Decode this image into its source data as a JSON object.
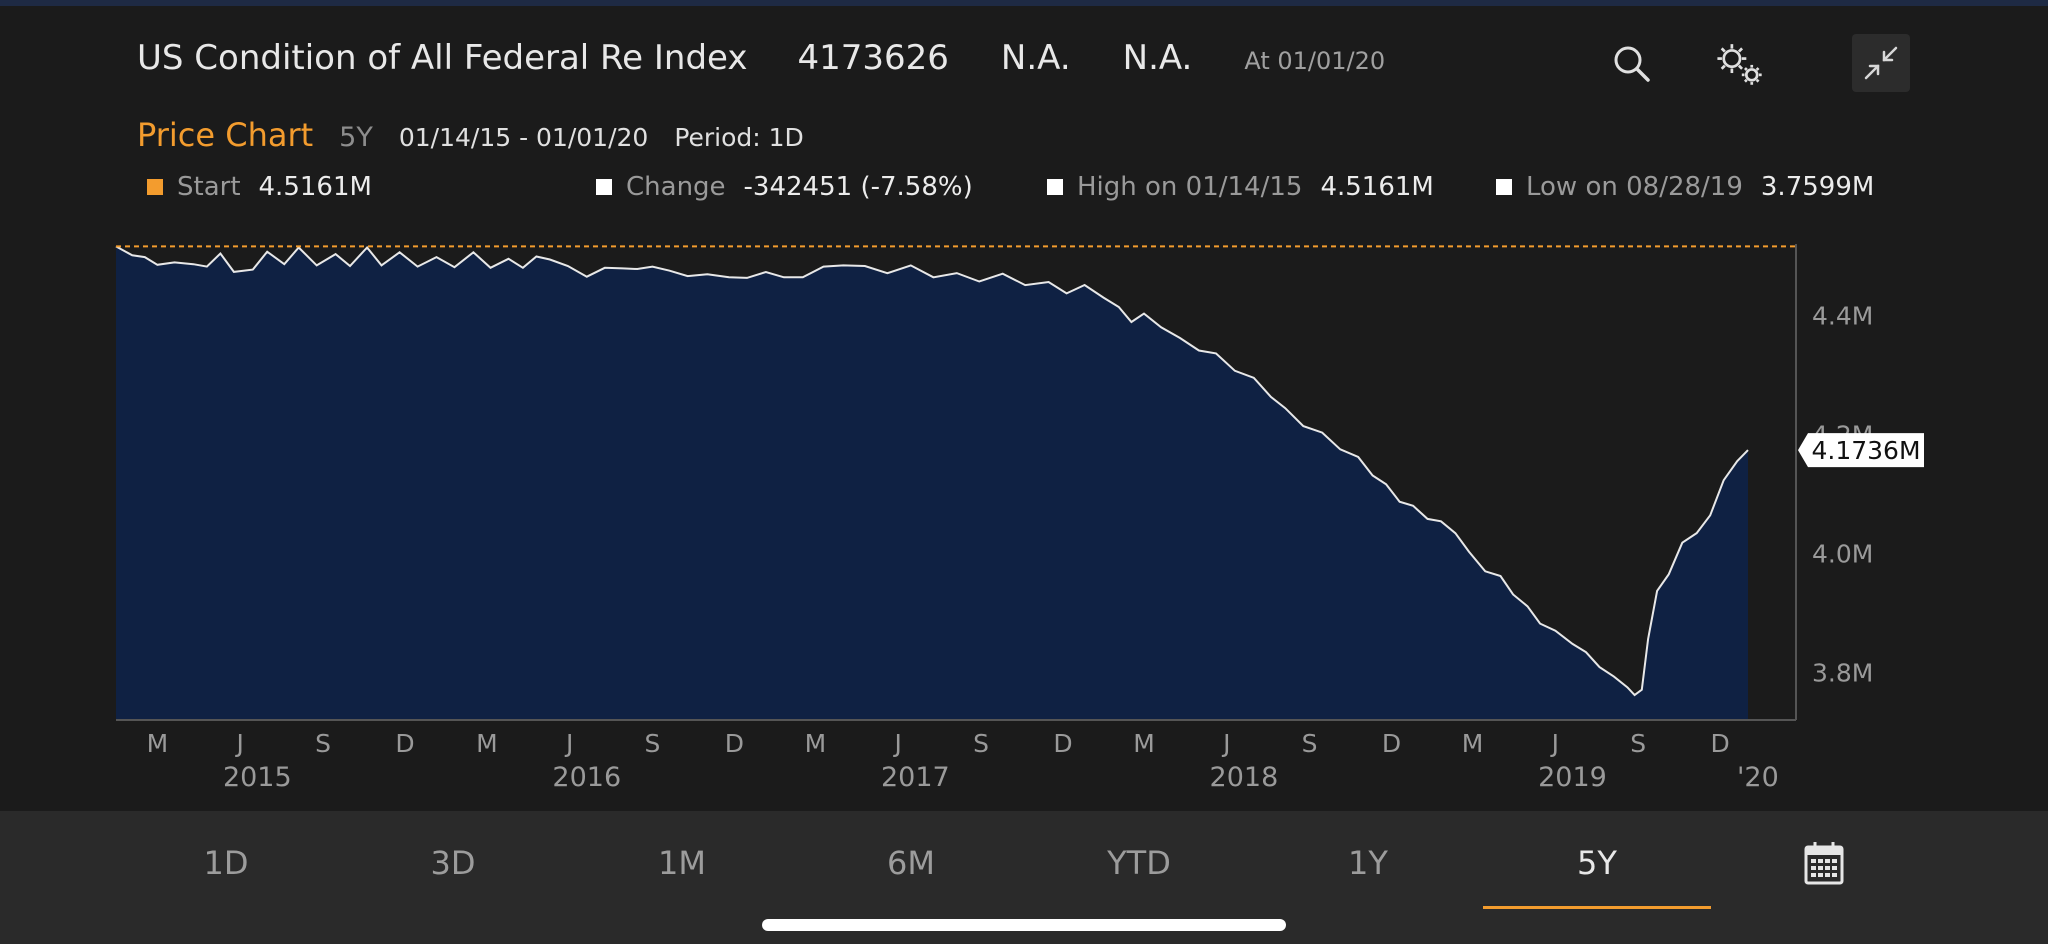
{
  "header": {
    "title": "US Condition of All Federal Re Index",
    "last_value": "4173626",
    "change_value": "N.A.",
    "change_pct": "N.A.",
    "as_of": "At 01/01/20"
  },
  "icons": {
    "search": "search-icon",
    "settings": "gear-icon",
    "collapse": "collapse-icon",
    "calendar": "calendar-icon"
  },
  "subheader": {
    "title": "Price Chart",
    "range": "5Y",
    "date_range": "01/14/15 - 01/01/20",
    "period": "Period: 1D"
  },
  "stats": {
    "start": {
      "label": "Start",
      "value": "4.5161M"
    },
    "change": {
      "label": "Change",
      "value": "-342451 (-7.58%)"
    },
    "high": {
      "label": "High on 01/14/15",
      "value": "4.5161M"
    },
    "low": {
      "label": "Low on 08/28/19",
      "value": "3.7599M"
    }
  },
  "colors": {
    "accent": "#f39c2e",
    "area_fill": "#0f2143",
    "line": "#e8e8e8",
    "background": "#1b1b1b"
  },
  "chart_data": {
    "type": "area",
    "x_start": "2015-01-14",
    "x_end": "2020-01-01",
    "ylim": [
      3.72,
      4.52
    ],
    "y_unit": "M",
    "y_ticks": [
      {
        "value": 4.4,
        "label": "4.4M"
      },
      {
        "value": 4.2,
        "label": "4.2M"
      },
      {
        "value": 4.0,
        "label": "4.0M"
      },
      {
        "value": 3.8,
        "label": "3.8M"
      }
    ],
    "month_ticks": [
      {
        "date": "2015-03-01",
        "label": "M"
      },
      {
        "date": "2015-06-01",
        "label": "J"
      },
      {
        "date": "2015-09-01",
        "label": "S"
      },
      {
        "date": "2015-12-01",
        "label": "D"
      },
      {
        "date": "2016-03-01",
        "label": "M"
      },
      {
        "date": "2016-06-01",
        "label": "J"
      },
      {
        "date": "2016-09-01",
        "label": "S"
      },
      {
        "date": "2016-12-01",
        "label": "D"
      },
      {
        "date": "2017-03-01",
        "label": "M"
      },
      {
        "date": "2017-06-01",
        "label": "J"
      },
      {
        "date": "2017-09-01",
        "label": "S"
      },
      {
        "date": "2017-12-01",
        "label": "D"
      },
      {
        "date": "2018-03-01",
        "label": "M"
      },
      {
        "date": "2018-06-01",
        "label": "J"
      },
      {
        "date": "2018-09-01",
        "label": "S"
      },
      {
        "date": "2018-12-01",
        "label": "D"
      },
      {
        "date": "2019-03-01",
        "label": "M"
      },
      {
        "date": "2019-06-01",
        "label": "J"
      },
      {
        "date": "2019-09-01",
        "label": "S"
      },
      {
        "date": "2019-12-01",
        "label": "D"
      }
    ],
    "year_ticks": [
      {
        "date": "2015-06-20",
        "label": "2015"
      },
      {
        "date": "2016-06-20",
        "label": "2016"
      },
      {
        "date": "2017-06-20",
        "label": "2017"
      },
      {
        "date": "2018-06-20",
        "label": "2018"
      },
      {
        "date": "2019-06-20",
        "label": "2019"
      },
      {
        "date": "2020-01-12",
        "label": "'20"
      }
    ],
    "reference_line": {
      "value": 4.5161
    },
    "last_point": {
      "value": 4.1736,
      "label": "4.1736M"
    },
    "series": [
      {
        "values": [
          [
            "2015-01-14",
            4.516
          ],
          [
            "2015-02-01",
            4.505
          ],
          [
            "2015-02-15",
            4.492
          ],
          [
            "2015-03-01",
            4.488
          ],
          [
            "2015-03-20",
            4.484
          ],
          [
            "2015-04-10",
            4.488
          ],
          [
            "2015-04-25",
            4.478
          ],
          [
            "2015-05-10",
            4.51
          ],
          [
            "2015-05-25",
            4.47
          ],
          [
            "2015-06-15",
            4.482
          ],
          [
            "2015-07-01",
            4.505
          ],
          [
            "2015-07-20",
            4.49
          ],
          [
            "2015-08-05",
            4.508
          ],
          [
            "2015-08-25",
            4.487
          ],
          [
            "2015-09-15",
            4.498
          ],
          [
            "2015-10-01",
            4.485
          ],
          [
            "2015-10-20",
            4.51
          ],
          [
            "2015-11-05",
            4.49
          ],
          [
            "2015-11-25",
            4.503
          ],
          [
            "2015-12-15",
            4.487
          ],
          [
            "2016-01-05",
            4.496
          ],
          [
            "2016-01-25",
            4.485
          ],
          [
            "2016-02-15",
            4.5
          ],
          [
            "2016-03-05",
            4.483
          ],
          [
            "2016-03-25",
            4.49
          ],
          [
            "2016-04-10",
            4.482
          ],
          [
            "2016-04-25",
            4.495
          ],
          [
            "2016-05-10",
            4.5
          ],
          [
            "2016-05-30",
            4.48
          ],
          [
            "2016-06-20",
            4.47
          ],
          [
            "2016-07-10",
            4.478
          ],
          [
            "2016-07-30",
            4.483
          ],
          [
            "2016-08-15",
            4.472
          ],
          [
            "2016-09-01",
            4.485
          ],
          [
            "2016-09-20",
            4.47
          ],
          [
            "2016-10-10",
            4.468
          ],
          [
            "2016-11-01",
            4.465
          ],
          [
            "2016-11-25",
            4.47
          ],
          [
            "2016-12-15",
            4.46
          ],
          [
            "2017-01-05",
            4.478
          ],
          [
            "2017-01-25",
            4.462
          ],
          [
            "2017-02-15",
            4.468
          ],
          [
            "2017-03-10",
            4.476
          ],
          [
            "2017-04-01",
            4.487
          ],
          [
            "2017-04-25",
            4.478
          ],
          [
            "2017-05-20",
            4.473
          ],
          [
            "2017-06-15",
            4.48
          ],
          [
            "2017-07-10",
            4.47
          ],
          [
            "2017-08-05",
            4.468
          ],
          [
            "2017-08-30",
            4.462
          ],
          [
            "2017-09-25",
            4.468
          ],
          [
            "2017-10-20",
            4.455
          ],
          [
            "2017-11-15",
            4.45
          ],
          [
            "2017-12-05",
            4.44
          ],
          [
            "2017-12-25",
            4.446
          ],
          [
            "2018-01-15",
            4.432
          ],
          [
            "2018-02-01",
            4.41
          ],
          [
            "2018-02-15",
            4.395
          ],
          [
            "2018-03-01",
            4.4
          ],
          [
            "2018-03-20",
            4.385
          ],
          [
            "2018-04-10",
            4.36
          ],
          [
            "2018-05-01",
            4.345
          ],
          [
            "2018-05-20",
            4.33
          ],
          [
            "2018-06-10",
            4.31
          ],
          [
            "2018-07-01",
            4.29
          ],
          [
            "2018-07-20",
            4.265
          ],
          [
            "2018-08-05",
            4.24
          ],
          [
            "2018-08-25",
            4.22
          ],
          [
            "2018-09-15",
            4.2
          ],
          [
            "2018-10-05",
            4.18
          ],
          [
            "2018-10-25",
            4.16
          ],
          [
            "2018-11-10",
            4.135
          ],
          [
            "2018-11-25",
            4.11
          ],
          [
            "2018-12-10",
            4.09
          ],
          [
            "2018-12-25",
            4.075
          ],
          [
            "2019-01-10",
            4.06
          ],
          [
            "2019-01-25",
            4.05
          ],
          [
            "2019-02-10",
            4.04
          ],
          [
            "2019-02-25",
            4.0
          ],
          [
            "2019-03-15",
            3.975
          ],
          [
            "2019-04-01",
            3.96
          ],
          [
            "2019-04-15",
            3.935
          ],
          [
            "2019-05-01",
            3.905
          ],
          [
            "2019-05-15",
            3.885
          ],
          [
            "2019-06-01",
            3.865
          ],
          [
            "2019-06-20",
            3.85
          ],
          [
            "2019-07-05",
            3.83
          ],
          [
            "2019-07-20",
            3.815
          ],
          [
            "2019-08-05",
            3.79
          ],
          [
            "2019-08-20",
            3.78
          ],
          [
            "2019-08-28",
            3.76
          ],
          [
            "2019-09-05",
            3.775
          ],
          [
            "2019-09-12",
            3.85
          ],
          [
            "2019-09-22",
            3.94
          ],
          [
            "2019-10-05",
            3.96
          ],
          [
            "2019-10-20",
            4.02
          ],
          [
            "2019-11-05",
            4.03
          ],
          [
            "2019-11-20",
            4.07
          ],
          [
            "2019-12-05",
            4.12
          ],
          [
            "2019-12-20",
            4.16
          ],
          [
            "2020-01-01",
            4.1736
          ]
        ]
      }
    ]
  },
  "tabs": [
    {
      "label": "1D"
    },
    {
      "label": "3D"
    },
    {
      "label": "1M"
    },
    {
      "label": "6M"
    },
    {
      "label": "YTD"
    },
    {
      "label": "1Y"
    },
    {
      "label": "5Y"
    }
  ]
}
